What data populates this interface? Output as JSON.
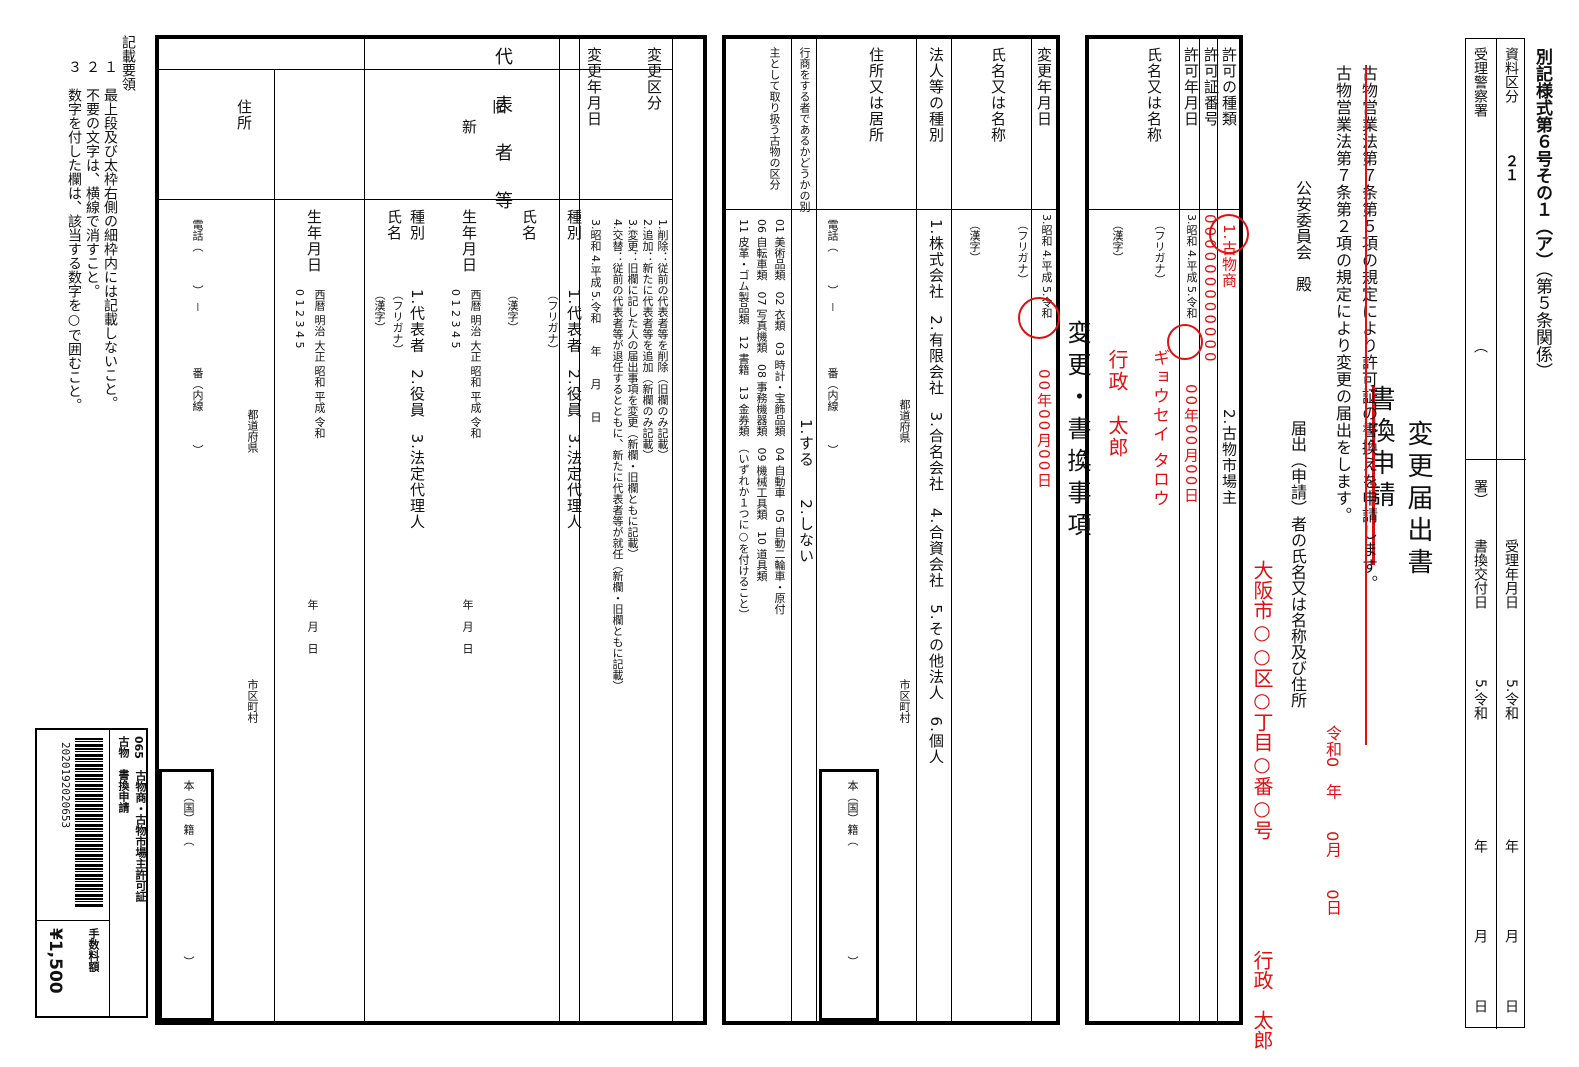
{
  "form": {
    "form_title": "別記様式第６号その１（ア）",
    "form_ref": "（第５条関係）",
    "doc_title": "変更届出書",
    "doc_title_struck": "書換申請",
    "section_title": "変更・書換事項",
    "legal_text": "古物営業法第７条第２項の規定により変更の届出をします。",
    "legal_text_struck": "古物営業法第７条第５項の規定により許可証の書換えを申請します。",
    "addressee": "公安委員会　殿",
    "date_filled": "令和0　年　　0月　　0日",
    "applicant_label": "届出（申請）者の氏名又は名称及び住所",
    "applicant_address": "大阪市○○区○丁目○番○号",
    "applicant_name": "行政　太郎"
  },
  "header_box": {
    "row1_label": "資料区分",
    "row1_value": "２１",
    "row2_label": "受理警察署",
    "row2_paren": "（",
    "row2_end": "署）",
    "row3_label": "受理年月日",
    "row3_era": "5.令和",
    "row4_label": "書換交付日",
    "row4_era": "5.令和",
    "year": "年",
    "month": "月",
    "day": "日"
  },
  "permit": {
    "kind_label": "許可の種類",
    "kind_opt1": "1.古物商",
    "kind_opt2": "2.古物市場主",
    "number_label": "許可証番号",
    "number_value": "000000000000",
    "date_label": "許可年月日",
    "date_era": "3.昭和 4.平成 5.令和",
    "date_value": "00年00月00日",
    "name_label": "氏名又は名称",
    "furigana": "（フリガナ）",
    "furigana_value": "ギョウセイ タロウ",
    "kanji": "（漢字）",
    "kanji_value": "行政　太郎"
  },
  "change": {
    "date_label": "変更年月日",
    "date_era": "3.昭和 4.平成 5.令和",
    "date_value": "00年00月00日",
    "name_label": "氏名又は名称",
    "furigana": "（フリガナ）",
    "kanji": "（漢字）",
    "corp_label": "法人等の種別",
    "corp_opts": "1.株式会社　2.有限会社　3.合名会社　4.合資会社　5.その他法人　6.個人",
    "address_label": "住所又は居所",
    "todofuken": "都道府県",
    "shiku": "市区町村",
    "phone": "電話（　　　）　－　　　　　番（内線　　　）",
    "honseki": "本（国）籍（　　　　　　　　　　）",
    "main_label": "行商をする者であるかどうかの別",
    "main_opts": "1.する　　2.しない",
    "kubun_label": "主として取り扱う古物の区分",
    "kubun_row1": "01 美術品類　02 衣類　03 時計・宝飾品類　04 自動車　05 自動二輪車・原付",
    "kubun_row2": "06 自転車類　07 写真機類　08 事務機器類　09 機械工具類　10 道具類",
    "kubun_row3": "11 皮革・ゴム製品類　12 書籍　13 金券類　（いずれか１つに○を付けること）"
  },
  "rep": {
    "kubun_label": "変更区分",
    "kubun_opts": [
      "1.削除：従前の代表者等を削除（旧欄のみ記載）",
      "2.追加：新たに代表者等を追加（新欄のみ記載）",
      "3.変更：旧欄に記した人の届出事項を変更（新欄・旧欄ともに記載）",
      "4.交替：従前の代表者等が退任するとともに、新たに代表者等が就任（新欄・旧欄ともに記載）"
    ],
    "date_label": "変更年月日",
    "date_value": "3.昭和 4.平成 5.令和　　年　　月　　日",
    "side_label": "代表者等",
    "old_label": "旧",
    "new_label": "新",
    "kind_label": "種別",
    "kind_opts": "1.代表者　2.役員　3.法定代理人",
    "name_label": "氏名",
    "furigana": "（フリガナ）",
    "kanji": "（漢字）",
    "birth_label": "生年月日",
    "birth_era": "西暦 明治 大正 昭和 平成 令和",
    "birth_nums": "0 1 2 3 4 5",
    "birth_ymd": "年　月　日",
    "address_label": "住所",
    "todofuken": "都道府県",
    "shiku": "市区町村",
    "phone": "電話（　　　）　－　　　　　番（内線　　　）",
    "honseki": "本（国）籍（　　　　　　　　　　）"
  },
  "notes": {
    "title": "記載要領",
    "n1": "１　最上段及び太枠右側の細枠内には記載しないこと。",
    "n2": "２　不要の文字は、横線で消すこと。",
    "n3": "３　数字を付した欄は、該当する数字を○で囲むこと。"
  },
  "footer": {
    "code": "065",
    "desc": "古物商・古物市場主許可証",
    "desc2": "古物　書換申請",
    "barcode_number": "2020192020653",
    "fee_label": "手数料額",
    "fee_value": "¥1,500"
  }
}
